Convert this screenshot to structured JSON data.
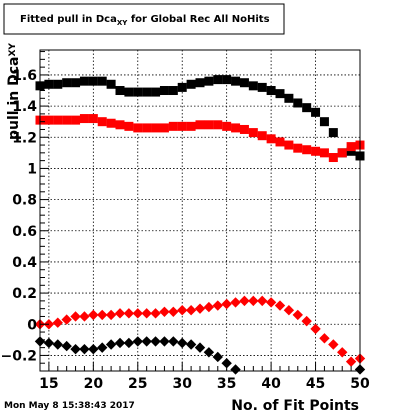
{
  "footer": {
    "datestamp": "Mon May  8 15:38:43 2017"
  },
  "chart_data": {
    "type": "scatter",
    "title": {
      "text": "Fitted pull in Dca",
      "sub": "XY",
      "suffix": " for Global Rec All NoHits"
    },
    "xlabel": "No. of Fit Points",
    "ylabel": {
      "text": "pull in Dca",
      "sub": "XY"
    },
    "xlim": [
      14,
      50
    ],
    "ylim": [
      -0.3,
      1.76
    ],
    "grid": true,
    "xticks": [
      15,
      20,
      25,
      30,
      35,
      40,
      45,
      50
    ],
    "yticks": [
      -0.2,
      0,
      0.2,
      0.4,
      0.6,
      0.8,
      1,
      1.2,
      1.4,
      1.6
    ],
    "ytick_labels": [
      "−0.2",
      "0",
      "0.2",
      "0.4",
      "0.6",
      "0.8",
      "1",
      "1.2",
      "1.4",
      "1.6"
    ],
    "series": [
      {
        "marker": "square",
        "color": "#000000",
        "x": [
          14,
          15,
          16,
          17,
          18,
          19,
          20,
          21,
          22,
          23,
          24,
          25,
          26,
          27,
          28,
          29,
          30,
          31,
          32,
          33,
          34,
          35,
          36,
          37,
          38,
          39,
          40,
          41,
          42,
          43,
          44,
          45,
          46,
          47,
          48,
          49,
          50
        ],
        "y": [
          1.53,
          1.54,
          1.54,
          1.55,
          1.55,
          1.56,
          1.56,
          1.56,
          1.54,
          1.5,
          1.49,
          1.49,
          1.49,
          1.49,
          1.5,
          1.5,
          1.52,
          1.54,
          1.55,
          1.56,
          1.57,
          1.57,
          1.56,
          1.55,
          1.53,
          1.52,
          1.5,
          1.48,
          1.45,
          1.42,
          1.39,
          1.36,
          1.3,
          1.23,
          1.1,
          1.11,
          1.08
        ]
      },
      {
        "marker": "square",
        "color": "#ff0000",
        "x": [
          14,
          15,
          16,
          17,
          18,
          19,
          20,
          21,
          22,
          23,
          24,
          25,
          26,
          27,
          28,
          29,
          30,
          31,
          32,
          33,
          34,
          35,
          36,
          37,
          38,
          39,
          40,
          41,
          42,
          43,
          44,
          45,
          46,
          47,
          48,
          49,
          50
        ],
        "y": [
          1.31,
          1.31,
          1.31,
          1.31,
          1.31,
          1.32,
          1.32,
          1.3,
          1.29,
          1.28,
          1.27,
          1.26,
          1.26,
          1.26,
          1.26,
          1.27,
          1.27,
          1.27,
          1.28,
          1.28,
          1.28,
          1.27,
          1.26,
          1.25,
          1.23,
          1.21,
          1.19,
          1.17,
          1.15,
          1.13,
          1.12,
          1.11,
          1.1,
          1.07,
          1.1,
          1.14,
          1.15
        ]
      },
      {
        "marker": "diamond",
        "color": "#ff0000",
        "x": [
          14,
          15,
          16,
          17,
          18,
          19,
          20,
          21,
          22,
          23,
          24,
          25,
          26,
          27,
          28,
          29,
          30,
          31,
          32,
          33,
          34,
          35,
          36,
          37,
          38,
          39,
          40,
          41,
          42,
          43,
          44,
          45,
          46,
          47,
          48,
          49,
          50
        ],
        "y": [
          0.0,
          0.0,
          0.01,
          0.03,
          0.05,
          0.05,
          0.06,
          0.06,
          0.06,
          0.07,
          0.07,
          0.07,
          0.07,
          0.07,
          0.08,
          0.08,
          0.09,
          0.09,
          0.1,
          0.11,
          0.12,
          0.13,
          0.14,
          0.15,
          0.15,
          0.15,
          0.14,
          0.12,
          0.09,
          0.06,
          0.02,
          -0.03,
          -0.09,
          -0.13,
          -0.18,
          -0.24,
          -0.22
        ]
      },
      {
        "marker": "diamond",
        "color": "#000000",
        "x": [
          14,
          15,
          16,
          17,
          18,
          19,
          20,
          21,
          22,
          23,
          24,
          25,
          26,
          27,
          28,
          29,
          30,
          31,
          32,
          33,
          34,
          35,
          36
        ],
        "y": [
          -0.11,
          -0.12,
          -0.13,
          -0.14,
          -0.16,
          -0.16,
          -0.16,
          -0.15,
          -0.13,
          -0.12,
          -0.12,
          -0.11,
          -0.11,
          -0.11,
          -0.11,
          -0.11,
          -0.12,
          -0.13,
          -0.15,
          -0.18,
          -0.21,
          -0.25,
          -0.29
        ]
      },
      {
        "marker": "diamond",
        "color": "#000000",
        "x": [
          50
        ],
        "y": [
          -0.29
        ]
      }
    ]
  }
}
